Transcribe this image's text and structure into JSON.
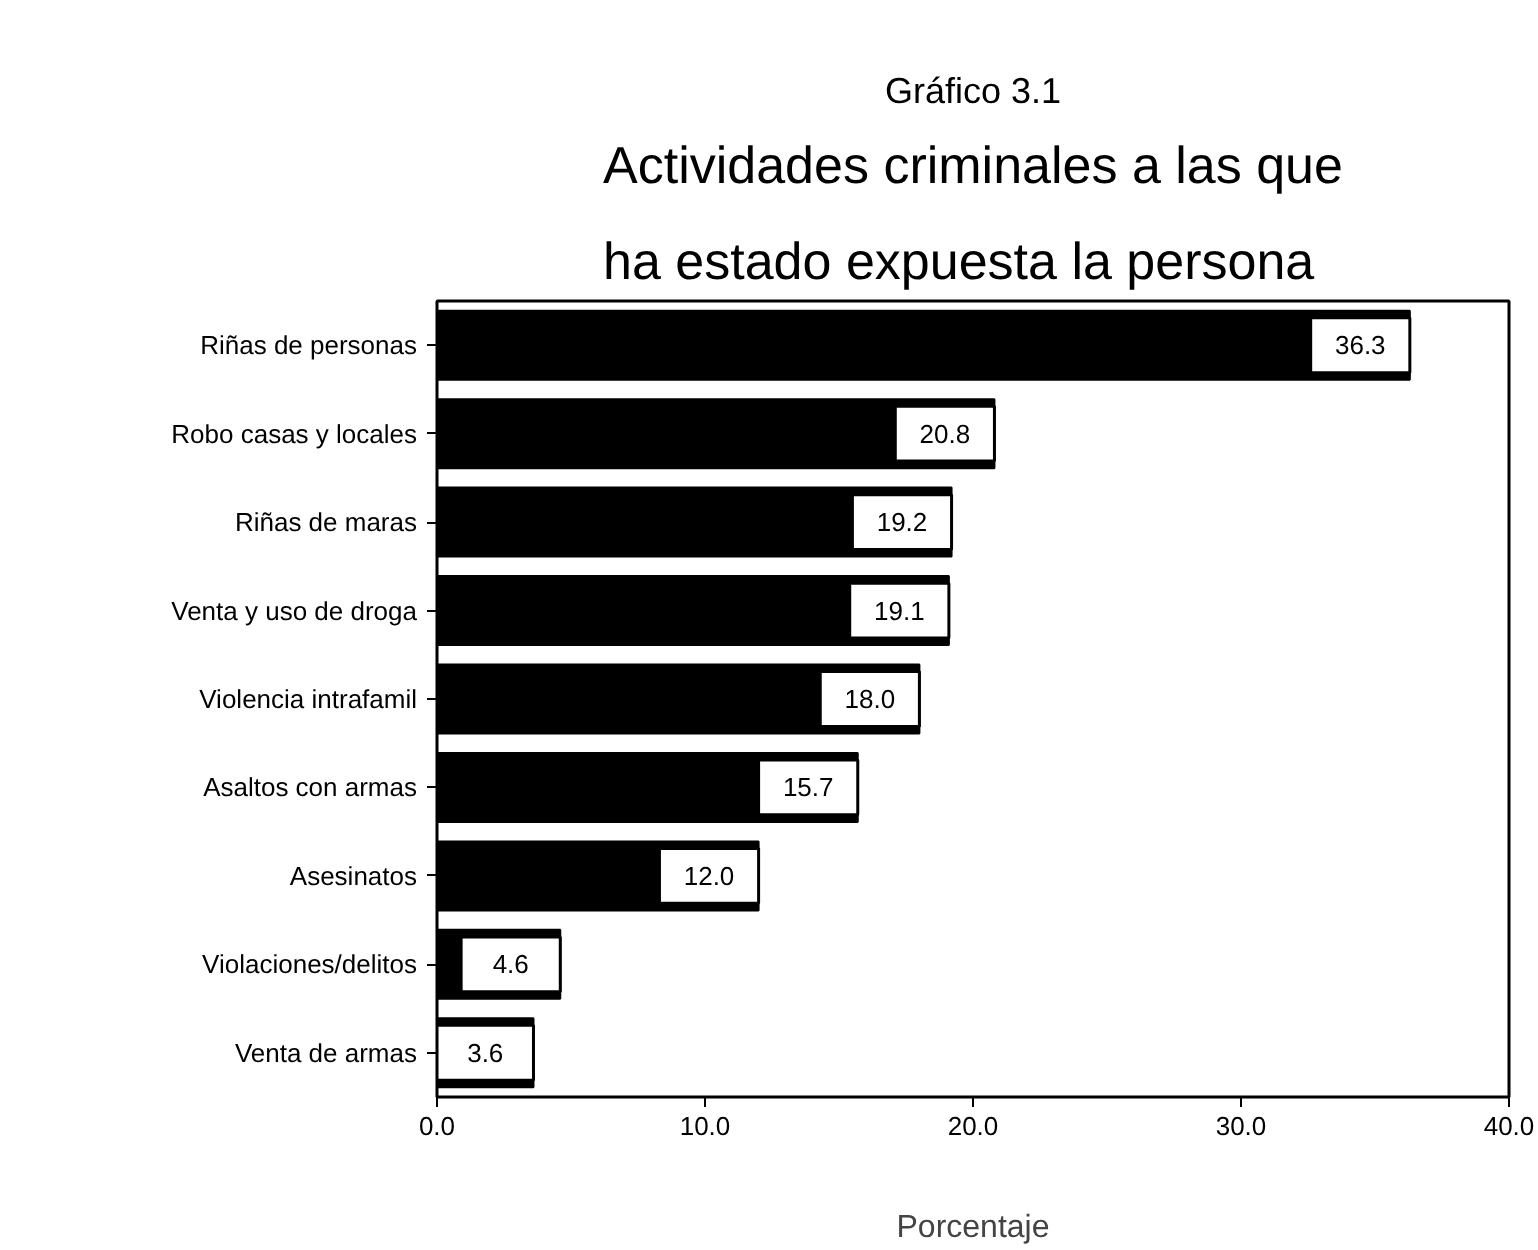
{
  "chart_data": {
    "type": "bar",
    "orientation": "horizontal",
    "title": "Actividades criminales a las que ha estado expuesta la persona",
    "annotations": [
      "Gráfico 3.1"
    ],
    "xlabel": "Porcentaje",
    "categories": [
      "Riñas de personas",
      "Robo casas y locales",
      "Riñas de maras",
      "Venta y uso de droga",
      "Violencia intrafamil",
      "Asaltos con armas",
      "Asesinatos",
      "Violaciones/delitos",
      "Venta de armas"
    ],
    "values": [
      36.3,
      20.8,
      19.2,
      19.1,
      18.0,
      15.7,
      12.0,
      4.6,
      3.6
    ],
    "color": "#000000",
    "xlim": [
      0,
      40
    ],
    "xticks": [
      {
        "value": 0,
        "label": "0.0"
      },
      {
        "value": 10,
        "label": "10.0"
      },
      {
        "value": 20,
        "label": "20.0"
      },
      {
        "value": 30,
        "label": "30.0"
      },
      {
        "value": 40,
        "label": "40.0"
      }
    ],
    "value_labels": [
      "36.3",
      "20.8",
      "19.2",
      "19.1",
      "18.0",
      "15.7",
      "12.0",
      "4.6",
      "3.6"
    ],
    "grid": false
  }
}
